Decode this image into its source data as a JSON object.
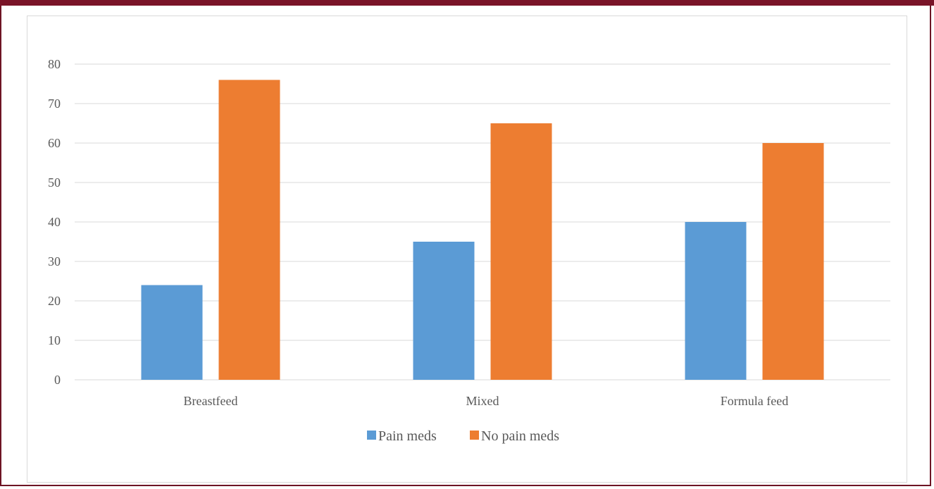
{
  "colors": {
    "frame": "#7a1428",
    "series_1": "#5b9bd5",
    "series_2": "#ed7d31",
    "grid": "#d9d9d9",
    "text": "#595959"
  },
  "chart_data": {
    "type": "bar",
    "categories": [
      "Breastfeed",
      "Mixed",
      "Formula feed"
    ],
    "series": [
      {
        "name": "Pain meds",
        "values": [
          24,
          35,
          40
        ],
        "color": "#5b9bd5"
      },
      {
        "name": "No pain meds",
        "values": [
          76,
          65,
          60
        ],
        "color": "#ed7d31"
      }
    ],
    "ylim": [
      0,
      80
    ],
    "yticks": [
      0,
      10,
      20,
      30,
      40,
      50,
      60,
      70,
      80
    ],
    "grid": true,
    "legend_position": "bottom"
  }
}
